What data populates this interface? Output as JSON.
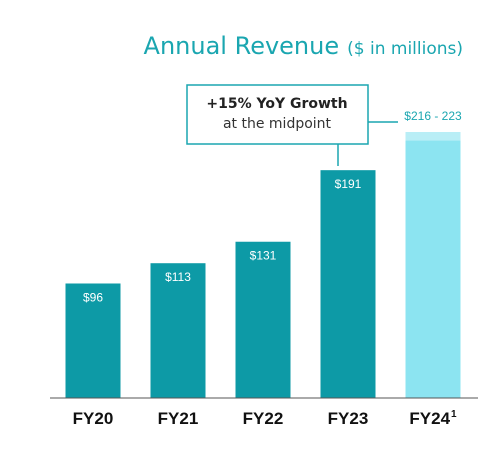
{
  "chart_data": {
    "type": "bar",
    "title": "Annual Revenue",
    "title_unit": "($ in millions)",
    "categories": [
      "FY20",
      "FY21",
      "FY22",
      "FY23",
      "FY24"
    ],
    "footnote_marker": "1",
    "series": [
      {
        "values": [
          96,
          113,
          131,
          191,
          223
        ],
        "range_low": [
          null,
          null,
          null,
          null,
          216
        ],
        "labels": [
          "$96",
          "$113",
          "$131",
          "$191",
          "$216 - 223"
        ],
        "projected": [
          false,
          false,
          false,
          false,
          true
        ]
      }
    ],
    "ylim": [
      0,
      223
    ],
    "xlabel": "",
    "ylabel": "",
    "grid": false,
    "legend": "none",
    "annotation": {
      "line1": "+15% YoY Growth",
      "line2": "at the midpoint"
    },
    "colors": {
      "actual": "#0d9aa6",
      "projected_fill": "#8ce4f1",
      "projected_top": "#b9eef6",
      "accent": "#1aa6b0",
      "baseline": "#555555"
    }
  }
}
